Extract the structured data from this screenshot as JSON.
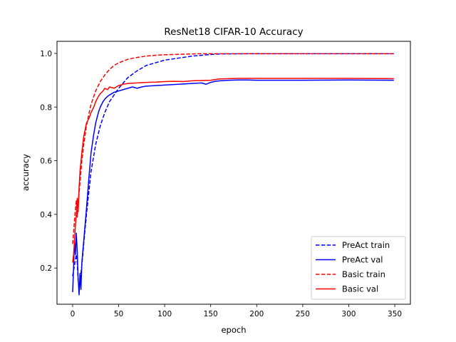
{
  "chart_data": {
    "type": "line",
    "title": "ResNet18 CIFAR-10 Accuracy",
    "xlabel": "epoch",
    "ylabel": "accuracy",
    "xlim": [
      -17,
      367
    ],
    "ylim": [
      0.065,
      1.045
    ],
    "xticks": [
      0,
      50,
      100,
      150,
      200,
      250,
      300,
      350
    ],
    "yticks": [
      0.2,
      0.4,
      0.6,
      0.8,
      1.0
    ],
    "xtick_labels": [
      "0",
      "50",
      "100",
      "150",
      "200",
      "250",
      "300",
      "350"
    ],
    "ytick_labels": [
      "0.2",
      "0.4",
      "0.6",
      "0.8",
      "1.0"
    ],
    "grid": false,
    "legend_position": "lower-right",
    "series": [
      {
        "name": "PreAct train",
        "color": "#0000ff",
        "dash": "dashed",
        "x": [
          0,
          2,
          4,
          5,
          6,
          7,
          8,
          10,
          12,
          15,
          20,
          25,
          30,
          35,
          40,
          50,
          60,
          70,
          80,
          90,
          100,
          110,
          120,
          130,
          140,
          150,
          160,
          200,
          250,
          300,
          349
        ],
        "y": [
          0.17,
          0.21,
          0.25,
          0.22,
          0.15,
          0.13,
          0.15,
          0.21,
          0.29,
          0.4,
          0.56,
          0.66,
          0.73,
          0.78,
          0.82,
          0.87,
          0.91,
          0.935,
          0.955,
          0.965,
          0.975,
          0.98,
          0.985,
          0.99,
          0.993,
          0.996,
          0.998,
          0.999,
          0.999,
          0.999,
          0.999
        ]
      },
      {
        "name": "PreAct val",
        "color": "#0000ff",
        "dash": "solid",
        "x": [
          0,
          1,
          2,
          3,
          4,
          5,
          6,
          7,
          8,
          9,
          10,
          12,
          15,
          18,
          20,
          23,
          25,
          28,
          30,
          33,
          35,
          38,
          40,
          45,
          50,
          55,
          60,
          65,
          70,
          75,
          80,
          90,
          100,
          110,
          120,
          130,
          140,
          145,
          150,
          155,
          160,
          170,
          180,
          190,
          200,
          250,
          300,
          349
        ],
        "y": [
          0.11,
          0.2,
          0.3,
          0.25,
          0.33,
          0.26,
          0.16,
          0.1,
          0.18,
          0.12,
          0.22,
          0.3,
          0.42,
          0.55,
          0.63,
          0.7,
          0.74,
          0.78,
          0.8,
          0.82,
          0.83,
          0.84,
          0.845,
          0.855,
          0.86,
          0.865,
          0.87,
          0.875,
          0.87,
          0.875,
          0.878,
          0.88,
          0.882,
          0.884,
          0.886,
          0.888,
          0.89,
          0.885,
          0.892,
          0.896,
          0.898,
          0.9,
          0.901,
          0.901,
          0.9,
          0.9,
          0.901,
          0.9
        ]
      },
      {
        "name": "Basic train",
        "color": "#ff0000",
        "dash": "dashed",
        "x": [
          0,
          1,
          2,
          3,
          4,
          5,
          6,
          8,
          10,
          12,
          15,
          18,
          20,
          25,
          30,
          35,
          40,
          45,
          50,
          60,
          70,
          80,
          90,
          100,
          110,
          120,
          130,
          140,
          150,
          160,
          200,
          250,
          300,
          349
        ],
        "y": [
          0.29,
          0.33,
          0.38,
          0.42,
          0.45,
          0.39,
          0.44,
          0.52,
          0.6,
          0.66,
          0.73,
          0.78,
          0.81,
          0.86,
          0.895,
          0.92,
          0.94,
          0.955,
          0.965,
          0.978,
          0.985,
          0.99,
          0.993,
          0.995,
          0.996,
          0.997,
          0.998,
          0.999,
          0.999,
          0.999,
          0.999,
          0.999,
          0.999,
          0.999
        ]
      },
      {
        "name": "Basic val",
        "color": "#ff0000",
        "dash": "solid",
        "x": [
          0,
          1,
          2,
          3,
          4,
          5,
          6,
          7,
          8,
          10,
          12,
          15,
          18,
          20,
          23,
          25,
          28,
          30,
          33,
          35,
          38,
          40,
          45,
          50,
          55,
          60,
          70,
          80,
          90,
          100,
          110,
          120,
          130,
          140,
          150,
          160,
          170,
          180,
          200,
          250,
          300,
          349
        ],
        "y": [
          0.22,
          0.25,
          0.3,
          0.36,
          0.4,
          0.46,
          0.41,
          0.5,
          0.56,
          0.63,
          0.69,
          0.74,
          0.76,
          0.78,
          0.8,
          0.82,
          0.84,
          0.85,
          0.86,
          0.87,
          0.865,
          0.875,
          0.87,
          0.88,
          0.885,
          0.888,
          0.89,
          0.892,
          0.893,
          0.895,
          0.896,
          0.895,
          0.898,
          0.899,
          0.9,
          0.905,
          0.906,
          0.907,
          0.907,
          0.907,
          0.907,
          0.906
        ]
      }
    ]
  }
}
